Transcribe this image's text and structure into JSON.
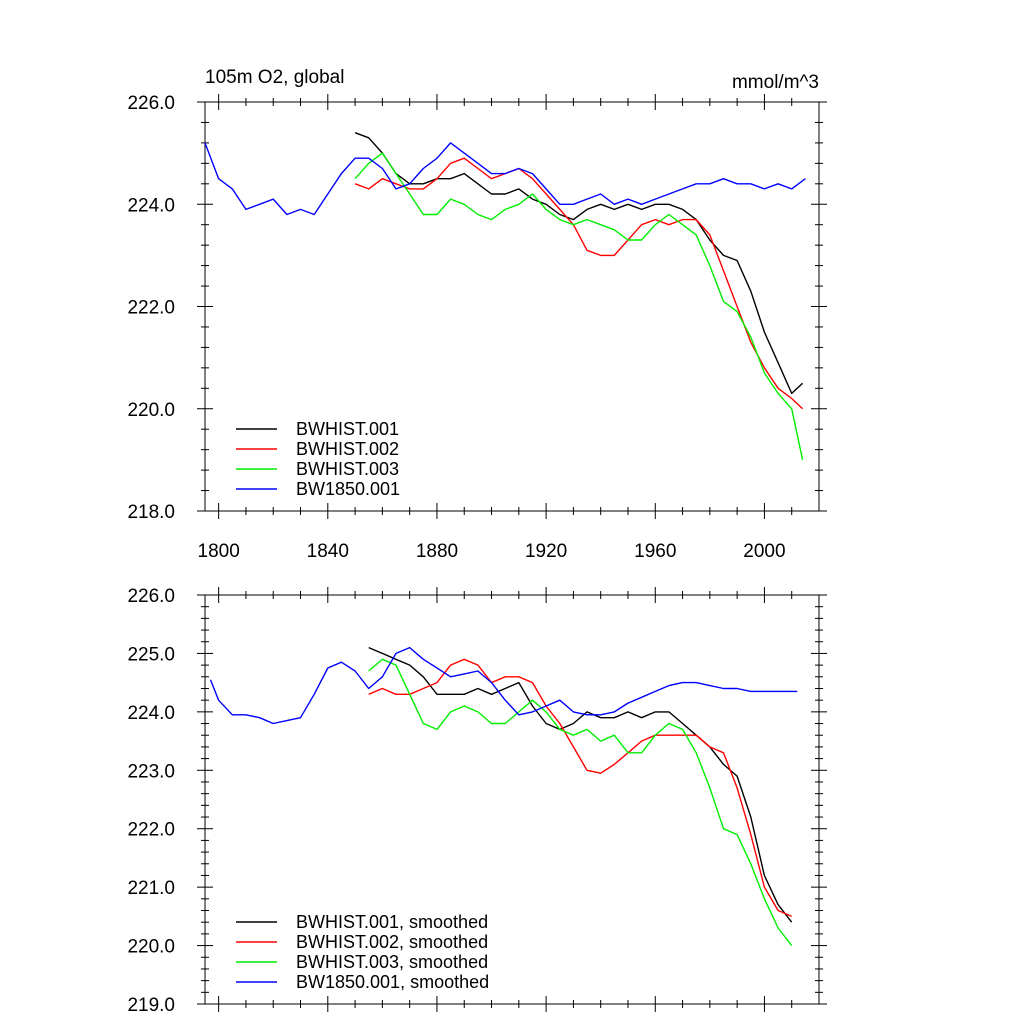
{
  "chart_data": [
    {
      "type": "line",
      "title": "105m O2, global",
      "units": "mmol/m^3",
      "xlim": [
        1795,
        2020
      ],
      "ylim": [
        218.0,
        226.0
      ],
      "xticks": [
        1800,
        1840,
        1880,
        1920,
        1960,
        2000
      ],
      "xtick_labels": [
        "1800",
        "1840",
        "1880",
        "1920",
        "1960",
        "2000"
      ],
      "yticks": [
        218.0,
        220.0,
        222.0,
        224.0,
        226.0
      ],
      "ytick_labels": [
        "218.0",
        "220.0",
        "222.0",
        "224.0",
        "226.0"
      ],
      "legend_position": "bottom-left",
      "series": [
        {
          "name": "BWHIST.001",
          "color": "#000000",
          "x": [
            1850,
            1855,
            1860,
            1865,
            1870,
            1875,
            1880,
            1885,
            1890,
            1895,
            1900,
            1905,
            1910,
            1915,
            1920,
            1925,
            1930,
            1935,
            1940,
            1945,
            1950,
            1955,
            1960,
            1965,
            1970,
            1975,
            1980,
            1985,
            1990,
            1995,
            2000,
            2005,
            2010,
            2014
          ],
          "y": [
            225.4,
            225.3,
            225.0,
            224.6,
            224.4,
            224.4,
            224.5,
            224.5,
            224.6,
            224.4,
            224.2,
            224.2,
            224.3,
            224.1,
            224.0,
            223.8,
            223.7,
            223.9,
            224.0,
            223.9,
            224.0,
            223.9,
            224.0,
            224.0,
            223.9,
            223.7,
            223.3,
            223.0,
            222.9,
            222.3,
            221.5,
            220.9,
            220.3,
            220.5
          ]
        },
        {
          "name": "BWHIST.002",
          "color": "#ff0000",
          "x": [
            1850,
            1855,
            1860,
            1865,
            1870,
            1875,
            1880,
            1885,
            1890,
            1895,
            1900,
            1905,
            1910,
            1915,
            1920,
            1925,
            1930,
            1935,
            1940,
            1945,
            1950,
            1955,
            1960,
            1965,
            1970,
            1975,
            1980,
            1985,
            1990,
            1995,
            2000,
            2005,
            2010,
            2014
          ],
          "y": [
            224.4,
            224.3,
            224.5,
            224.4,
            224.3,
            224.3,
            224.5,
            224.8,
            224.9,
            224.7,
            224.5,
            224.6,
            224.7,
            224.5,
            224.2,
            223.9,
            223.6,
            223.1,
            223.0,
            223.0,
            223.3,
            223.6,
            223.7,
            223.6,
            223.7,
            223.7,
            223.4,
            222.7,
            222.0,
            221.3,
            220.8,
            220.4,
            220.2,
            220.0
          ]
        },
        {
          "name": "BWHIST.003",
          "color": "#00ee00",
          "x": [
            1850,
            1855,
            1860,
            1865,
            1870,
            1875,
            1880,
            1885,
            1890,
            1895,
            1900,
            1905,
            1910,
            1915,
            1920,
            1925,
            1930,
            1935,
            1940,
            1945,
            1950,
            1955,
            1960,
            1965,
            1970,
            1975,
            1980,
            1985,
            1990,
            1995,
            2000,
            2005,
            2010,
            2014
          ],
          "y": [
            224.5,
            224.8,
            225.0,
            224.6,
            224.2,
            223.8,
            223.8,
            224.1,
            224.0,
            223.8,
            223.7,
            223.9,
            224.0,
            224.2,
            223.9,
            223.7,
            223.6,
            223.7,
            223.6,
            223.5,
            223.3,
            223.3,
            223.6,
            223.8,
            223.6,
            223.4,
            222.8,
            222.1,
            221.9,
            221.4,
            220.7,
            220.3,
            220.0,
            219.0
          ]
        },
        {
          "name": "BW1850.001",
          "color": "#0000ff",
          "x": [
            1795,
            1800,
            1805,
            1810,
            1815,
            1820,
            1825,
            1830,
            1835,
            1840,
            1845,
            1850,
            1855,
            1860,
            1865,
            1870,
            1875,
            1880,
            1885,
            1890,
            1895,
            1900,
            1905,
            1910,
            1915,
            1920,
            1925,
            1930,
            1935,
            1940,
            1945,
            1950,
            1955,
            1960,
            1965,
            1970,
            1975,
            1980,
            1985,
            1990,
            1995,
            2000,
            2005,
            2010,
            2015
          ],
          "y": [
            225.2,
            224.5,
            224.3,
            223.9,
            224.0,
            224.1,
            223.8,
            223.9,
            223.8,
            224.2,
            224.6,
            224.9,
            224.9,
            224.7,
            224.3,
            224.4,
            224.7,
            224.9,
            225.2,
            225.0,
            224.8,
            224.6,
            224.6,
            224.7,
            224.6,
            224.3,
            224.0,
            224.0,
            224.1,
            224.2,
            224.0,
            224.1,
            224.0,
            224.1,
            224.2,
            224.3,
            224.4,
            224.4,
            224.5,
            224.4,
            224.4,
            224.3,
            224.4,
            224.3,
            224.5
          ]
        }
      ]
    },
    {
      "type": "line",
      "title": "",
      "units": "",
      "xlim": [
        1795,
        2020
      ],
      "ylim": [
        219.0,
        226.0
      ],
      "xticks": [
        1800,
        1840,
        1880,
        1920,
        1960,
        2000
      ],
      "xtick_labels": [],
      "yticks": [
        219.0,
        220.0,
        221.0,
        222.0,
        223.0,
        224.0,
        225.0,
        226.0
      ],
      "ytick_labels": [
        "219.0",
        "220.0",
        "221.0",
        "222.0",
        "223.0",
        "224.0",
        "225.0",
        "226.0"
      ],
      "legend_position": "bottom-left",
      "series": [
        {
          "name": "BWHIST.001, smoothed",
          "color": "#000000",
          "x": [
            1855,
            1860,
            1865,
            1870,
            1875,
            1880,
            1885,
            1890,
            1895,
            1900,
            1905,
            1910,
            1915,
            1920,
            1925,
            1930,
            1935,
            1940,
            1945,
            1950,
            1955,
            1960,
            1965,
            1970,
            1975,
            1980,
            1985,
            1990,
            1995,
            2000,
            2005,
            2010
          ],
          "y": [
            225.1,
            225.0,
            224.9,
            224.8,
            224.6,
            224.3,
            224.3,
            224.3,
            224.4,
            224.3,
            224.4,
            224.5,
            224.1,
            223.8,
            223.7,
            223.8,
            224.0,
            223.9,
            223.9,
            224.0,
            223.9,
            224.0,
            224.0,
            223.8,
            223.6,
            223.4,
            223.1,
            222.9,
            222.2,
            221.2,
            220.7,
            220.4
          ]
        },
        {
          "name": "BWHIST.002, smoothed",
          "color": "#ff0000",
          "x": [
            1855,
            1860,
            1865,
            1870,
            1875,
            1880,
            1885,
            1890,
            1895,
            1900,
            1905,
            1910,
            1915,
            1920,
            1925,
            1930,
            1935,
            1940,
            1945,
            1950,
            1955,
            1960,
            1965,
            1970,
            1975,
            1980,
            1985,
            1990,
            1995,
            2000,
            2005,
            2010
          ],
          "y": [
            224.3,
            224.4,
            224.3,
            224.3,
            224.4,
            224.5,
            224.8,
            224.9,
            224.8,
            224.5,
            224.6,
            224.6,
            224.5,
            224.1,
            223.8,
            223.4,
            223.0,
            222.95,
            223.1,
            223.3,
            223.5,
            223.6,
            223.6,
            223.6,
            223.6,
            223.4,
            223.3,
            222.7,
            221.9,
            221.0,
            220.6,
            220.5
          ]
        },
        {
          "name": "BWHIST.003, smoothed",
          "color": "#00ee00",
          "x": [
            1855,
            1860,
            1865,
            1870,
            1875,
            1880,
            1885,
            1890,
            1895,
            1900,
            1905,
            1910,
            1915,
            1920,
            1925,
            1930,
            1935,
            1940,
            1945,
            1950,
            1955,
            1960,
            1965,
            1970,
            1975,
            1980,
            1985,
            1990,
            1995,
            2000,
            2005,
            2010
          ],
          "y": [
            224.7,
            224.9,
            224.8,
            224.3,
            223.8,
            223.7,
            224.0,
            224.1,
            224.0,
            223.8,
            223.8,
            224.0,
            224.2,
            224.0,
            223.7,
            223.6,
            223.7,
            223.5,
            223.6,
            223.3,
            223.3,
            223.6,
            223.8,
            223.7,
            223.3,
            222.7,
            222.0,
            221.9,
            221.4,
            220.8,
            220.3,
            220.0
          ]
        },
        {
          "name": "BW1850.001, smoothed",
          "color": "#0000ff",
          "x": [
            1797,
            1800,
            1805,
            1810,
            1815,
            1820,
            1825,
            1830,
            1835,
            1840,
            1845,
            1850,
            1855,
            1860,
            1865,
            1870,
            1875,
            1880,
            1885,
            1890,
            1895,
            1900,
            1905,
            1910,
            1915,
            1920,
            1925,
            1930,
            1935,
            1940,
            1945,
            1950,
            1955,
            1960,
            1965,
            1970,
            1975,
            1980,
            1985,
            1990,
            1995,
            2000,
            2005,
            2010,
            2012
          ],
          "y": [
            224.55,
            224.2,
            223.95,
            223.95,
            223.9,
            223.8,
            223.85,
            223.9,
            224.3,
            224.75,
            224.85,
            224.7,
            224.4,
            224.6,
            225.0,
            225.1,
            224.9,
            224.75,
            224.6,
            224.65,
            224.7,
            224.5,
            224.2,
            223.95,
            224.0,
            224.1,
            224.2,
            224.0,
            223.95,
            223.95,
            224.0,
            224.15,
            224.25,
            224.35,
            224.45,
            224.5,
            224.5,
            224.45,
            224.4,
            224.4,
            224.35,
            224.35,
            224.35,
            224.35,
            224.35
          ]
        }
      ]
    }
  ]
}
